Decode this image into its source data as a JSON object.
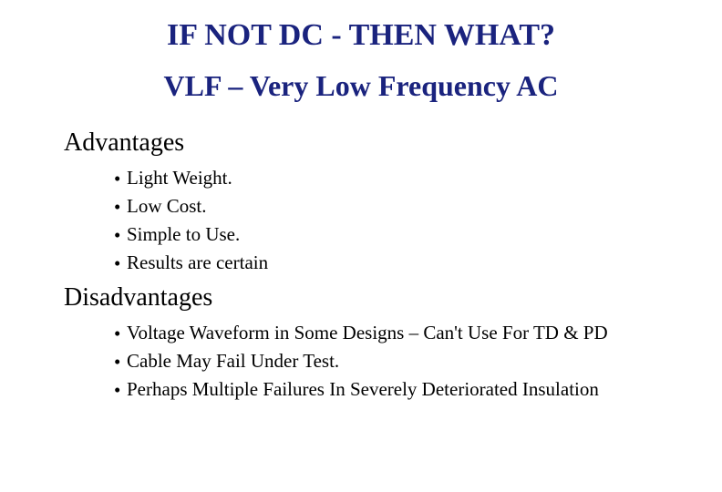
{
  "colors": {
    "heading": "#1a237e",
    "body": "#000000",
    "background": "#ffffff"
  },
  "typography": {
    "title_fontsize": 34,
    "subtitle_fontsize": 32,
    "section_fontsize": 28,
    "bullet_fontsize": 21,
    "font_family": "Times New Roman"
  },
  "title": "IF NOT DC - THEN WHAT?",
  "subtitle": "VLF – Very Low Frequency AC",
  "advantages": {
    "heading": "Advantages",
    "items": [
      "Light Weight.",
      "Low Cost.",
      "Simple to Use.",
      "Results are certain"
    ]
  },
  "disadvantages": {
    "heading": "Disadvantages",
    "items": [
      "Voltage Waveform in Some Designs – Can't Use For TD & PD",
      "Cable May Fail Under Test.",
      "Perhaps Multiple Failures In Severely Deteriorated Insulation"
    ]
  }
}
